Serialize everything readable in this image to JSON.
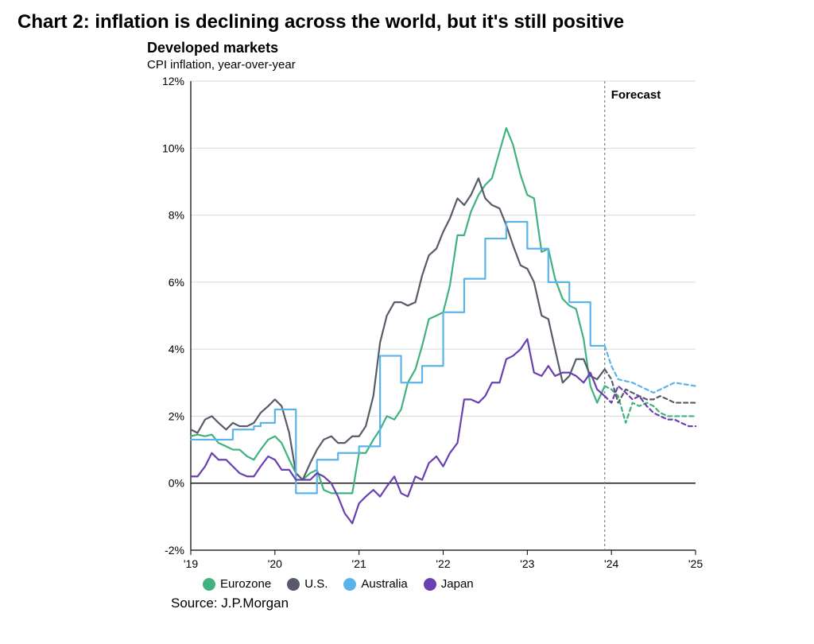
{
  "main_title": "Chart 2: inflation is declining across the world, but it's still positive",
  "chart": {
    "type": "line",
    "title": "Developed markets",
    "subtitle": "CPI inflation, year-over-year",
    "background_color": "#ffffff",
    "grid_color": "#d9d9d9",
    "axis_color": "#000000",
    "forecast_line_color": "#808080",
    "forecast_label": "Forecast",
    "x_label_fontsize": 14,
    "y_label_fontsize": 14,
    "title_fontsize": 18,
    "subtitle_fontsize": 15,
    "line_width": 2.2,
    "forecast_dash": "5,4",
    "xlim": [
      2019,
      2025
    ],
    "ylim": [
      -2,
      12
    ],
    "ytick_step": 2,
    "ytick_labels": [
      "-2%",
      "0%",
      "2%",
      "4%",
      "6%",
      "8%",
      "10%",
      "12%"
    ],
    "xtick_positions": [
      2019,
      2020,
      2021,
      2022,
      2023,
      2024,
      2025
    ],
    "xtick_labels": [
      "'19",
      "'20",
      "'21",
      "'22",
      "'23",
      "'24",
      "'25"
    ],
    "forecast_start_x": 2023.92,
    "series": [
      {
        "name": "Eurozone",
        "color": "#3fb27f",
        "data": [
          [
            2019.0,
            1.4
          ],
          [
            2019.08,
            1.45
          ],
          [
            2019.17,
            1.4
          ],
          [
            2019.25,
            1.45
          ],
          [
            2019.33,
            1.2
          ],
          [
            2019.42,
            1.1
          ],
          [
            2019.5,
            1.0
          ],
          [
            2019.58,
            1.0
          ],
          [
            2019.67,
            0.8
          ],
          [
            2019.75,
            0.7
          ],
          [
            2019.83,
            1.0
          ],
          [
            2019.92,
            1.3
          ],
          [
            2020.0,
            1.4
          ],
          [
            2020.08,
            1.2
          ],
          [
            2020.17,
            0.7
          ],
          [
            2020.25,
            0.3
          ],
          [
            2020.33,
            0.1
          ],
          [
            2020.42,
            0.3
          ],
          [
            2020.5,
            0.4
          ],
          [
            2020.58,
            -0.2
          ],
          [
            2020.67,
            -0.3
          ],
          [
            2020.75,
            -0.3
          ],
          [
            2020.83,
            -0.3
          ],
          [
            2020.92,
            -0.3
          ],
          [
            2021.0,
            0.9
          ],
          [
            2021.08,
            0.9
          ],
          [
            2021.17,
            1.3
          ],
          [
            2021.25,
            1.6
          ],
          [
            2021.33,
            2.0
          ],
          [
            2021.42,
            1.9
          ],
          [
            2021.5,
            2.2
          ],
          [
            2021.58,
            3.0
          ],
          [
            2021.67,
            3.4
          ],
          [
            2021.75,
            4.1
          ],
          [
            2021.83,
            4.9
          ],
          [
            2021.92,
            5.0
          ],
          [
            2022.0,
            5.1
          ],
          [
            2022.08,
            5.9
          ],
          [
            2022.17,
            7.4
          ],
          [
            2022.25,
            7.4
          ],
          [
            2022.33,
            8.1
          ],
          [
            2022.42,
            8.6
          ],
          [
            2022.5,
            8.9
          ],
          [
            2022.58,
            9.1
          ],
          [
            2022.67,
            9.9
          ],
          [
            2022.75,
            10.6
          ],
          [
            2022.83,
            10.1
          ],
          [
            2022.92,
            9.2
          ],
          [
            2023.0,
            8.6
          ],
          [
            2023.08,
            8.5
          ],
          [
            2023.17,
            6.9
          ],
          [
            2023.25,
            7.0
          ],
          [
            2023.33,
            6.1
          ],
          [
            2023.42,
            5.5
          ],
          [
            2023.5,
            5.3
          ],
          [
            2023.58,
            5.2
          ],
          [
            2023.67,
            4.3
          ],
          [
            2023.75,
            2.9
          ],
          [
            2023.83,
            2.4
          ],
          [
            2023.92,
            2.9
          ]
        ],
        "forecast": [
          [
            2023.92,
            2.9
          ],
          [
            2024.0,
            2.8
          ],
          [
            2024.08,
            2.6
          ],
          [
            2024.17,
            1.8
          ],
          [
            2024.25,
            2.4
          ],
          [
            2024.33,
            2.3
          ],
          [
            2024.42,
            2.4
          ],
          [
            2024.5,
            2.3
          ],
          [
            2024.58,
            2.1
          ],
          [
            2024.67,
            2.0
          ],
          [
            2024.75,
            2.0
          ],
          [
            2024.83,
            2.0
          ],
          [
            2024.92,
            2.0
          ],
          [
            2025.0,
            2.0
          ]
        ]
      },
      {
        "name": "U.S.",
        "color": "#565c67",
        "data": [
          [
            2019.0,
            1.6
          ],
          [
            2019.08,
            1.5
          ],
          [
            2019.17,
            1.9
          ],
          [
            2019.25,
            2.0
          ],
          [
            2019.33,
            1.8
          ],
          [
            2019.42,
            1.6
          ],
          [
            2019.5,
            1.8
          ],
          [
            2019.58,
            1.7
          ],
          [
            2019.67,
            1.7
          ],
          [
            2019.75,
            1.8
          ],
          [
            2019.83,
            2.1
          ],
          [
            2019.92,
            2.3
          ],
          [
            2020.0,
            2.5
          ],
          [
            2020.08,
            2.3
          ],
          [
            2020.17,
            1.5
          ],
          [
            2020.25,
            0.3
          ],
          [
            2020.33,
            0.1
          ],
          [
            2020.42,
            0.6
          ],
          [
            2020.5,
            1.0
          ],
          [
            2020.58,
            1.3
          ],
          [
            2020.67,
            1.4
          ],
          [
            2020.75,
            1.2
          ],
          [
            2020.83,
            1.2
          ],
          [
            2020.92,
            1.4
          ],
          [
            2021.0,
            1.4
          ],
          [
            2021.08,
            1.7
          ],
          [
            2021.17,
            2.6
          ],
          [
            2021.25,
            4.2
          ],
          [
            2021.33,
            5.0
          ],
          [
            2021.42,
            5.4
          ],
          [
            2021.5,
            5.4
          ],
          [
            2021.58,
            5.3
          ],
          [
            2021.67,
            5.4
          ],
          [
            2021.75,
            6.2
          ],
          [
            2021.83,
            6.8
          ],
          [
            2021.92,
            7.0
          ],
          [
            2022.0,
            7.5
          ],
          [
            2022.08,
            7.9
          ],
          [
            2022.17,
            8.5
          ],
          [
            2022.25,
            8.3
          ],
          [
            2022.33,
            8.6
          ],
          [
            2022.42,
            9.1
          ],
          [
            2022.5,
            8.5
          ],
          [
            2022.58,
            8.3
          ],
          [
            2022.67,
            8.2
          ],
          [
            2022.75,
            7.7
          ],
          [
            2022.83,
            7.1
          ],
          [
            2022.92,
            6.5
          ],
          [
            2023.0,
            6.4
          ],
          [
            2023.08,
            6.0
          ],
          [
            2023.17,
            5.0
          ],
          [
            2023.25,
            4.9
          ],
          [
            2023.33,
            4.0
          ],
          [
            2023.42,
            3.0
          ],
          [
            2023.5,
            3.2
          ],
          [
            2023.58,
            3.7
          ],
          [
            2023.67,
            3.7
          ],
          [
            2023.75,
            3.2
          ],
          [
            2023.83,
            3.1
          ],
          [
            2023.92,
            3.4
          ]
        ],
        "forecast": [
          [
            2023.92,
            3.4
          ],
          [
            2024.0,
            3.1
          ],
          [
            2024.08,
            2.4
          ],
          [
            2024.17,
            2.8
          ],
          [
            2024.25,
            2.7
          ],
          [
            2024.33,
            2.6
          ],
          [
            2024.42,
            2.5
          ],
          [
            2024.5,
            2.5
          ],
          [
            2024.58,
            2.6
          ],
          [
            2024.67,
            2.5
          ],
          [
            2024.75,
            2.4
          ],
          [
            2024.83,
            2.4
          ],
          [
            2024.92,
            2.4
          ],
          [
            2025.0,
            2.4
          ]
        ]
      },
      {
        "name": "Australia",
        "color": "#5ab4e8",
        "data": [
          [
            2019.0,
            1.3
          ],
          [
            2019.25,
            1.3
          ],
          [
            2019.5,
            1.6
          ],
          [
            2019.75,
            1.7
          ],
          [
            2019.83,
            1.8
          ],
          [
            2020.0,
            2.2
          ],
          [
            2020.25,
            -0.3
          ],
          [
            2020.5,
            0.7
          ],
          [
            2020.75,
            0.9
          ],
          [
            2021.0,
            1.1
          ],
          [
            2021.25,
            3.8
          ],
          [
            2021.5,
            3.0
          ],
          [
            2021.75,
            3.5
          ],
          [
            2022.0,
            5.1
          ],
          [
            2022.25,
            6.1
          ],
          [
            2022.5,
            7.3
          ],
          [
            2022.75,
            7.8
          ],
          [
            2023.0,
            7.0
          ],
          [
            2023.25,
            6.0
          ],
          [
            2023.5,
            5.4
          ],
          [
            2023.75,
            4.1
          ],
          [
            2023.92,
            4.1
          ]
        ],
        "forecast": [
          [
            2023.92,
            4.1
          ],
          [
            2024.0,
            3.5
          ],
          [
            2024.08,
            3.1
          ],
          [
            2024.25,
            3.0
          ],
          [
            2024.5,
            2.7
          ],
          [
            2024.75,
            3.0
          ],
          [
            2025.0,
            2.9
          ]
        ],
        "step": true
      },
      {
        "name": "Japan",
        "color": "#6a3fb0",
        "data": [
          [
            2019.0,
            0.2
          ],
          [
            2019.08,
            0.2
          ],
          [
            2019.17,
            0.5
          ],
          [
            2019.25,
            0.9
          ],
          [
            2019.33,
            0.7
          ],
          [
            2019.42,
            0.7
          ],
          [
            2019.5,
            0.5
          ],
          [
            2019.58,
            0.3
          ],
          [
            2019.67,
            0.2
          ],
          [
            2019.75,
            0.2
          ],
          [
            2019.83,
            0.5
          ],
          [
            2019.92,
            0.8
          ],
          [
            2020.0,
            0.7
          ],
          [
            2020.08,
            0.4
          ],
          [
            2020.17,
            0.4
          ],
          [
            2020.25,
            0.1
          ],
          [
            2020.33,
            0.1
          ],
          [
            2020.42,
            0.1
          ],
          [
            2020.5,
            0.3
          ],
          [
            2020.58,
            0.2
          ],
          [
            2020.67,
            0.0
          ],
          [
            2020.75,
            -0.4
          ],
          [
            2020.83,
            -0.9
          ],
          [
            2020.92,
            -1.2
          ],
          [
            2021.0,
            -0.6
          ],
          [
            2021.08,
            -0.4
          ],
          [
            2021.17,
            -0.2
          ],
          [
            2021.25,
            -0.4
          ],
          [
            2021.33,
            -0.1
          ],
          [
            2021.42,
            0.2
          ],
          [
            2021.5,
            -0.3
          ],
          [
            2021.58,
            -0.4
          ],
          [
            2021.67,
            0.2
          ],
          [
            2021.75,
            0.1
          ],
          [
            2021.83,
            0.6
          ],
          [
            2021.92,
            0.8
          ],
          [
            2022.0,
            0.5
          ],
          [
            2022.08,
            0.9
          ],
          [
            2022.17,
            1.2
          ],
          [
            2022.25,
            2.5
          ],
          [
            2022.33,
            2.5
          ],
          [
            2022.42,
            2.4
          ],
          [
            2022.5,
            2.6
          ],
          [
            2022.58,
            3.0
          ],
          [
            2022.67,
            3.0
          ],
          [
            2022.75,
            3.7
          ],
          [
            2022.83,
            3.8
          ],
          [
            2022.92,
            4.0
          ],
          [
            2023.0,
            4.3
          ],
          [
            2023.08,
            3.3
          ],
          [
            2023.17,
            3.2
          ],
          [
            2023.25,
            3.5
          ],
          [
            2023.33,
            3.2
          ],
          [
            2023.42,
            3.3
          ],
          [
            2023.5,
            3.3
          ],
          [
            2023.58,
            3.2
          ],
          [
            2023.67,
            3.0
          ],
          [
            2023.75,
            3.3
          ],
          [
            2023.83,
            2.8
          ],
          [
            2023.92,
            2.6
          ]
        ],
        "forecast": [
          [
            2023.92,
            2.6
          ],
          [
            2024.0,
            2.4
          ],
          [
            2024.08,
            2.9
          ],
          [
            2024.17,
            2.7
          ],
          [
            2024.25,
            2.5
          ],
          [
            2024.33,
            2.6
          ],
          [
            2024.42,
            2.3
          ],
          [
            2024.5,
            2.1
          ],
          [
            2024.58,
            2.0
          ],
          [
            2024.67,
            1.9
          ],
          [
            2024.75,
            1.9
          ],
          [
            2024.83,
            1.8
          ],
          [
            2024.92,
            1.7
          ],
          [
            2025.0,
            1.7
          ]
        ]
      }
    ]
  },
  "legend": {
    "items": [
      {
        "name": "Eurozone",
        "label": "Eurozone",
        "color": "#3fb27f"
      },
      {
        "name": "U.S.",
        "label": "U.S.",
        "color": "#565c67"
      },
      {
        "name": "Australia",
        "label": "Australia",
        "color": "#5ab4e8"
      },
      {
        "name": "Japan",
        "label": "Japan",
        "color": "#6a3fb0"
      }
    ]
  },
  "source": "Source: J.P.Morgan"
}
